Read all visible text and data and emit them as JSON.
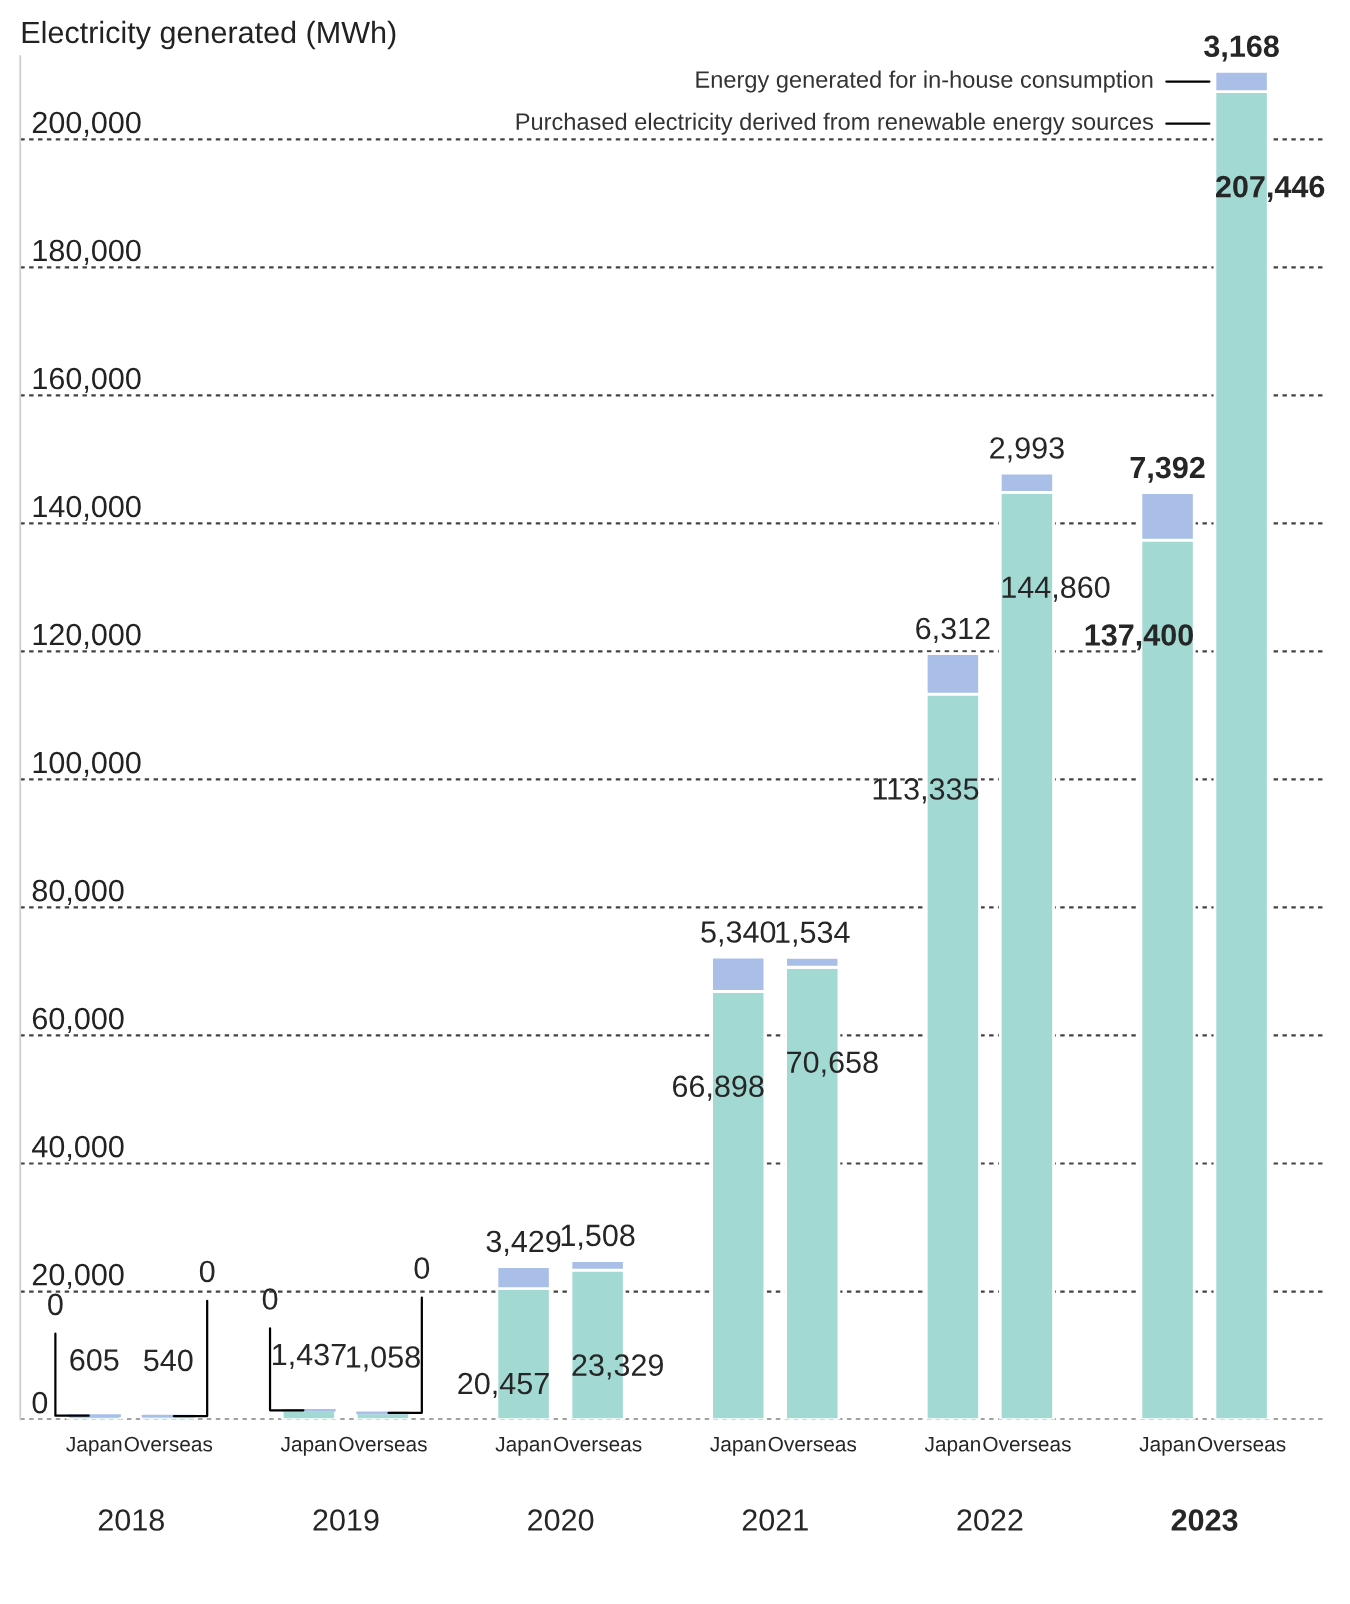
{
  "chart_data": {
    "type": "bar",
    "stacked": true,
    "ylabel": "Electricity generated (MWh)",
    "categories": [
      "Japan",
      "Overseas",
      "Japan",
      "Overseas",
      "Japan",
      "Overseas",
      "Japan",
      "Overseas",
      "Japan",
      "Overseas",
      "Japan",
      "Overseas"
    ],
    "annotations": [
      "2018",
      "2019",
      "2020",
      "2021",
      "2022",
      "2023"
    ],
    "series": [
      {
        "name": "Purchased electricity derived from renewable energy sources",
        "color": "#a3d9d3",
        "values": [
          605,
          540,
          1437,
          1058,
          20457,
          23329,
          66898,
          70658,
          113335,
          144860,
          137400,
          207446
        ],
        "value_labels": [
          "605",
          "540",
          "1,437",
          "1,058",
          "20,457",
          "23,329",
          "66,898",
          "70,658",
          "113,335",
          "144,860",
          "137,400",
          "207,446"
        ]
      },
      {
        "name": "Energy generated for in-house consumption",
        "color": "#a9bfe8",
        "values": [
          0,
          0,
          0,
          0,
          3429,
          1508,
          5340,
          1534,
          6312,
          2993,
          7392,
          3168
        ],
        "value_labels": [
          "0",
          "0",
          "0",
          "0",
          "3,429",
          "1,508",
          "5,340",
          "1,534",
          "6,312",
          "2,993",
          "7,392",
          "3,168"
        ]
      }
    ],
    "ylim": [
      0,
      213000
    ],
    "yticks": [
      0,
      {
        "value": 20000,
        "label": "20,000"
      },
      {
        "value": 40000,
        "label": "40,000"
      },
      {
        "value": 60000,
        "label": "60,000"
      },
      {
        "value": 80000,
        "label": "80,000"
      },
      {
        "value": 100000,
        "label": "100,000"
      },
      {
        "value": 120000,
        "label": "120,000"
      },
      {
        "value": 140000,
        "label": "140,000"
      },
      {
        "value": 160000,
        "label": "160,000"
      },
      {
        "value": 180000,
        "label": "180,000"
      },
      {
        "value": 200000,
        "label": "200,000"
      }
    ],
    "grid": "y"
  }
}
